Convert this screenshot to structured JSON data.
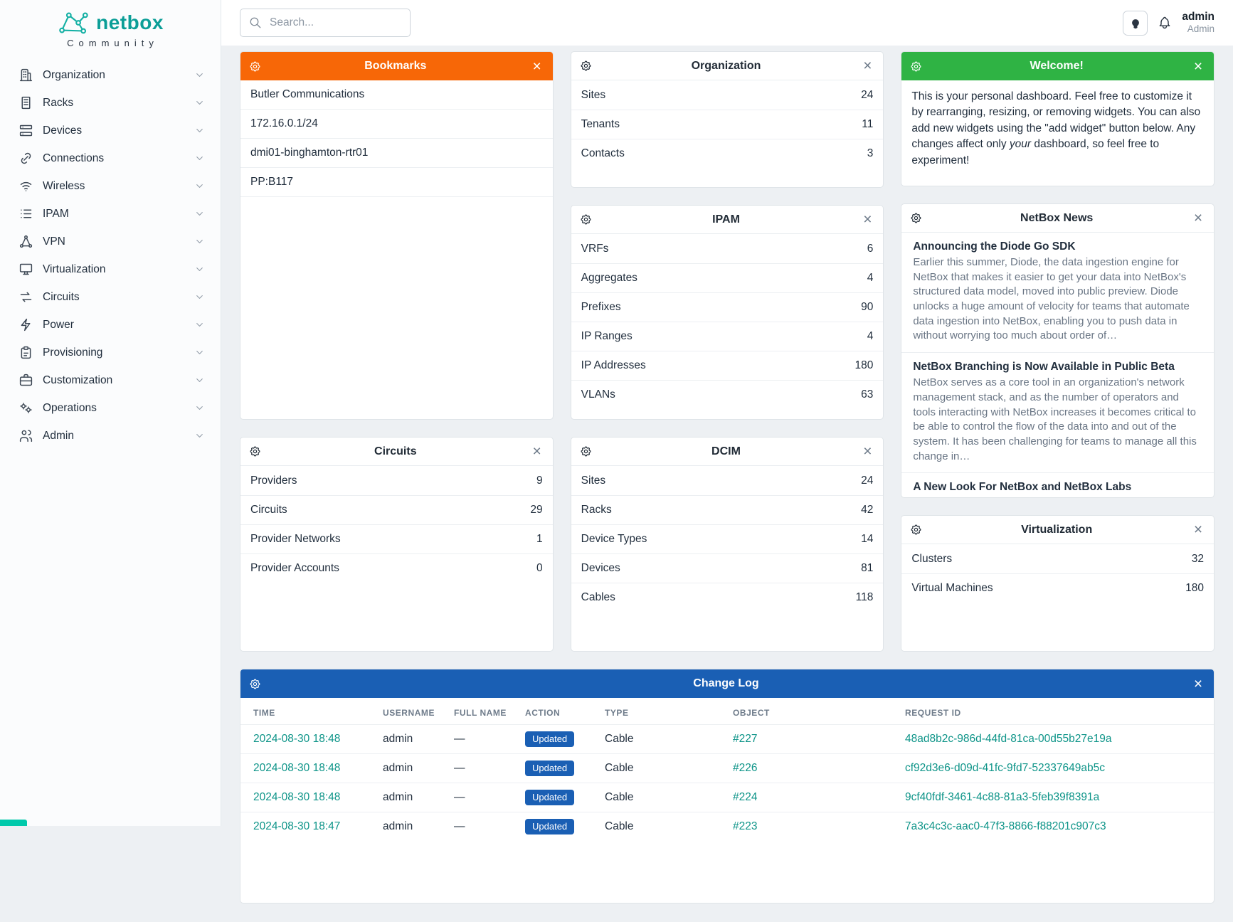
{
  "ui": {
    "close_glyph": "×"
  },
  "colors": {
    "orange": "#f76707",
    "green": "#2fb344",
    "blue": "#1a5fb4",
    "teal": "#0d9488",
    "brand": "#0b9e97"
  },
  "brand": {
    "name": "netbox",
    "subtitle": "Community"
  },
  "search": {
    "placeholder": "Search..."
  },
  "user": {
    "name": "admin",
    "role": "Admin"
  },
  "sidebar": {
    "items": [
      {
        "label": "Organization",
        "icon": "building"
      },
      {
        "label": "Racks",
        "icon": "rack"
      },
      {
        "label": "Devices",
        "icon": "devices"
      },
      {
        "label": "Connections",
        "icon": "link"
      },
      {
        "label": "Wireless",
        "icon": "wifi"
      },
      {
        "label": "IPAM",
        "icon": "list"
      },
      {
        "label": "VPN",
        "icon": "network"
      },
      {
        "label": "Virtualization",
        "icon": "monitor"
      },
      {
        "label": "Circuits",
        "icon": "transfer"
      },
      {
        "label": "Power",
        "icon": "bolt"
      },
      {
        "label": "Provisioning",
        "icon": "clipboard"
      },
      {
        "label": "Customization",
        "icon": "briefcase"
      },
      {
        "label": "Operations",
        "icon": "gears"
      },
      {
        "label": "Admin",
        "icon": "users"
      }
    ]
  },
  "widgets": {
    "bookmarks": {
      "title": "Bookmarks",
      "items": [
        "Butler Communications",
        "172.16.0.1/24",
        "dmi01-binghamton-rtr01",
        "PP:B117"
      ]
    },
    "organization": {
      "title": "Organization",
      "rows": [
        {
          "label": "Sites",
          "value": 24
        },
        {
          "label": "Tenants",
          "value": 11
        },
        {
          "label": "Contacts",
          "value": 3
        }
      ]
    },
    "welcome": {
      "title": "Welcome!",
      "body_1": "This is your personal dashboard. Feel free to customize it by rearranging, resizing, or removing widgets. You can also add new widgets using the \"add widget\" button below. Any changes affect only ",
      "body_em": "your",
      "body_2": " dashboard, so feel free to experiment!"
    },
    "ipam": {
      "title": "IPAM",
      "rows": [
        {
          "label": "VRFs",
          "value": 6
        },
        {
          "label": "Aggregates",
          "value": 4
        },
        {
          "label": "Prefixes",
          "value": 90
        },
        {
          "label": "IP Ranges",
          "value": 4
        },
        {
          "label": "IP Addresses",
          "value": 180
        },
        {
          "label": "VLANs",
          "value": 63
        }
      ]
    },
    "news": {
      "title": "NetBox News",
      "articles": [
        {
          "title": "Announcing the Diode Go SDK",
          "body": "Earlier this summer, Diode, the data ingestion engine for NetBox that makes it easier to get your data into NetBox's structured data model, moved into public preview. Diode unlocks a huge amount of velocity for teams that automate data ingestion into NetBox, enabling you to push data in without worrying too much about order of…"
        },
        {
          "title": "NetBox Branching is Now Available in Public Beta",
          "body": "NetBox serves as a core tool in an organization's network management stack, and as the number of operators and tools interacting with NetBox increases it becomes critical to be able to control the flow of the data into and out of the system. It has been challenging for teams to manage all this change in…"
        },
        {
          "title": "A New Look For NetBox and NetBox Labs",
          "body": ""
        }
      ]
    },
    "circuits": {
      "title": "Circuits",
      "rows": [
        {
          "label": "Providers",
          "value": 9
        },
        {
          "label": "Circuits",
          "value": 29
        },
        {
          "label": "Provider Networks",
          "value": 1
        },
        {
          "label": "Provider Accounts",
          "value": 0
        }
      ]
    },
    "dcim": {
      "title": "DCIM",
      "rows": [
        {
          "label": "Sites",
          "value": 24
        },
        {
          "label": "Racks",
          "value": 42
        },
        {
          "label": "Device Types",
          "value": 14
        },
        {
          "label": "Devices",
          "value": 81
        },
        {
          "label": "Cables",
          "value": 118
        }
      ]
    },
    "virtualization": {
      "title": "Virtualization",
      "rows": [
        {
          "label": "Clusters",
          "value": 32
        },
        {
          "label": "Virtual Machines",
          "value": 180
        }
      ]
    },
    "changelog": {
      "title": "Change Log",
      "columns": [
        "TIME",
        "USERNAME",
        "FULL NAME",
        "ACTION",
        "TYPE",
        "OBJECT",
        "REQUEST ID"
      ],
      "rows": [
        {
          "time": "2024-08-30 18:48",
          "username": "admin",
          "full_name": "—",
          "action": "Updated",
          "type": "Cable",
          "object": "#227",
          "request_id": "48ad8b2c-986d-44fd-81ca-00d55b27e19a"
        },
        {
          "time": "2024-08-30 18:48",
          "username": "admin",
          "full_name": "—",
          "action": "Updated",
          "type": "Cable",
          "object": "#226",
          "request_id": "cf92d3e6-d09d-41fc-9fd7-52337649ab5c"
        },
        {
          "time": "2024-08-30 18:48",
          "username": "admin",
          "full_name": "—",
          "action": "Updated",
          "type": "Cable",
          "object": "#224",
          "request_id": "9cf40fdf-3461-4c88-81a3-5feb39f8391a"
        },
        {
          "time": "2024-08-30 18:47",
          "username": "admin",
          "full_name": "—",
          "action": "Updated",
          "type": "Cable",
          "object": "#223",
          "request_id": "7a3c4c3c-aac0-47f3-8866-f88201c907c3"
        }
      ]
    }
  }
}
